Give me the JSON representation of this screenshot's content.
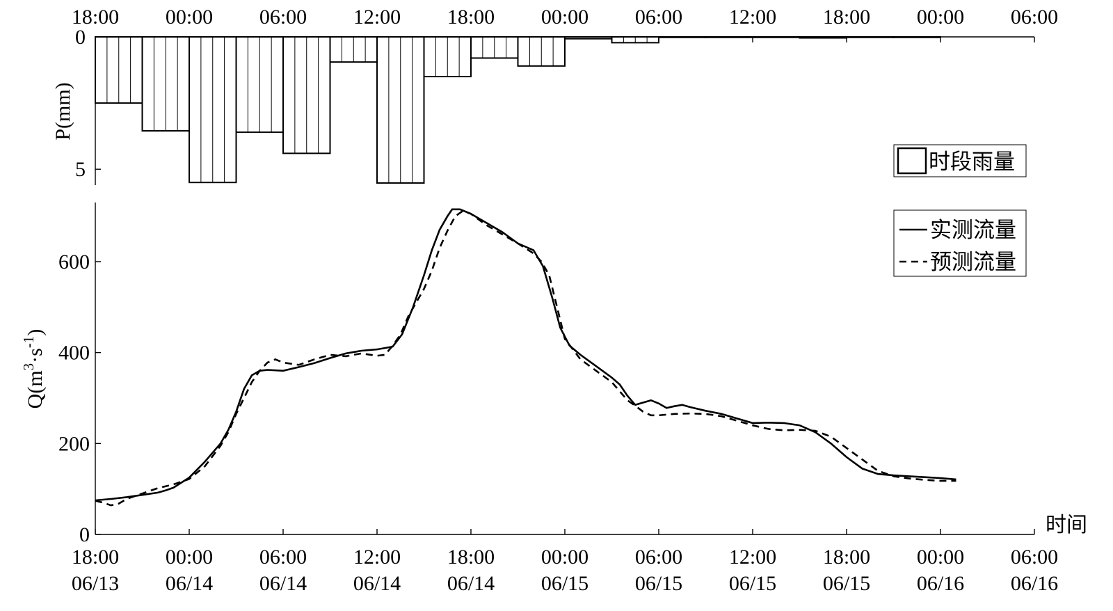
{
  "chart_data": [
    {
      "type": "bar",
      "ylabel": "P(mm)",
      "ylim": [
        0,
        5.6
      ],
      "y_inverted": true,
      "yticks": [
        {
          "value": 0,
          "label": "0"
        },
        {
          "value": 5,
          "label": "5"
        }
      ],
      "xaxis_position": "top",
      "xticks": [
        {
          "hours": 0,
          "label": "18:00"
        },
        {
          "hours": 6,
          "label": "00:00"
        },
        {
          "hours": 12,
          "label": "06:00"
        },
        {
          "hours": 18,
          "label": "12:00"
        },
        {
          "hours": 24,
          "label": "18:00"
        },
        {
          "hours": 30,
          "label": "00:00"
        },
        {
          "hours": 36,
          "label": "06:00"
        },
        {
          "hours": 42,
          "label": "12:00"
        },
        {
          "hours": 48,
          "label": "18:00"
        },
        {
          "hours": 54,
          "label": "00:00"
        },
        {
          "hours": 60,
          "label": "06:00"
        }
      ],
      "xlim_hours": [
        0,
        60
      ],
      "bar_width_hours": 3,
      "legend": {
        "label": "时段雨量",
        "position": "bottom-right"
      },
      "bars": [
        {
          "start_hours": 0,
          "value": 2.5
        },
        {
          "start_hours": 3,
          "value": 3.55
        },
        {
          "start_hours": 6,
          "value": 5.5
        },
        {
          "start_hours": 9,
          "value": 3.6
        },
        {
          "start_hours": 12,
          "value": 4.4
        },
        {
          "start_hours": 15,
          "value": 0.95
        },
        {
          "start_hours": 18,
          "value": 5.52
        },
        {
          "start_hours": 21,
          "value": 1.5
        },
        {
          "start_hours": 24,
          "value": 0.8
        },
        {
          "start_hours": 27,
          "value": 1.1
        },
        {
          "start_hours": 30,
          "value": 0.07
        },
        {
          "start_hours": 33,
          "value": 0.22
        },
        {
          "start_hours": 36,
          "value": 0.02
        },
        {
          "start_hours": 39,
          "value": 0.02
        },
        {
          "start_hours": 42,
          "value": 0.02
        },
        {
          "start_hours": 45,
          "value": 0.04
        },
        {
          "start_hours": 48,
          "value": 0.02
        },
        {
          "start_hours": 51,
          "value": 0.02
        }
      ]
    },
    {
      "type": "line",
      "ylabel": "Q(m³·s⁻¹)",
      "ylabel_base": "Q(m",
      "ylabel_sup1": "3",
      "ylabel_mid": "·s",
      "ylabel_sup2": "-1",
      "ylabel_end": ")",
      "xlabel": "时间",
      "ylim": [
        0,
        730
      ],
      "yticks": [
        0,
        200,
        400,
        600
      ],
      "xlim_hours": [
        0,
        60
      ],
      "xticks": [
        {
          "hours": 0,
          "time": "18:00",
          "date": "06/13"
        },
        {
          "hours": 6,
          "time": "00:00",
          "date": "06/14"
        },
        {
          "hours": 12,
          "time": "06:00",
          "date": "06/14"
        },
        {
          "hours": 18,
          "time": "12:00",
          "date": "06/14"
        },
        {
          "hours": 24,
          "time": "18:00",
          "date": "06/14"
        },
        {
          "hours": 30,
          "time": "00:00",
          "date": "06/15"
        },
        {
          "hours": 36,
          "time": "06:00",
          "date": "06/15"
        },
        {
          "hours": 42,
          "time": "12:00",
          "date": "06/15"
        },
        {
          "hours": 48,
          "time": "18:00",
          "date": "06/15"
        },
        {
          "hours": 54,
          "time": "00:00",
          "date": "06/16"
        },
        {
          "hours": 60,
          "time": "06:00",
          "date": "06/16"
        }
      ],
      "legend": {
        "position": "top-right"
      },
      "series": [
        {
          "name": "实测流量",
          "style": "solid",
          "points": [
            [
              0,
              75
            ],
            [
              1,
              78
            ],
            [
              2,
              82
            ],
            [
              3,
              87
            ],
            [
              4,
              92
            ],
            [
              4.5,
              97
            ],
            [
              5,
              103
            ],
            [
              6,
              125
            ],
            [
              7,
              160
            ],
            [
              8,
              200
            ],
            [
              8.5,
              230
            ],
            [
              9,
              270
            ],
            [
              9.5,
              320
            ],
            [
              10,
              350
            ],
            [
              10.5,
              360
            ],
            [
              11,
              362
            ],
            [
              12,
              360
            ],
            [
              13,
              368
            ],
            [
              14,
              377
            ],
            [
              15,
              388
            ],
            [
              16,
              398
            ],
            [
              17,
              404
            ],
            [
              18,
              407
            ],
            [
              19,
              413
            ],
            [
              19.6,
              440
            ],
            [
              20.3,
              500
            ],
            [
              21,
              570
            ],
            [
              21.5,
              625
            ],
            [
              22,
              670
            ],
            [
              22.5,
              700
            ],
            [
              22.8,
              715
            ],
            [
              23.3,
              715
            ],
            [
              24,
              705
            ],
            [
              25,
              685
            ],
            [
              26,
              665
            ],
            [
              27,
              640
            ],
            [
              28,
              625
            ],
            [
              28.6,
              590
            ],
            [
              29.2,
              520
            ],
            [
              29.7,
              455
            ],
            [
              30.3,
              415
            ],
            [
              31,
              395
            ],
            [
              32,
              370
            ],
            [
              33,
              345
            ],
            [
              33.5,
              330
            ],
            [
              34,
              305
            ],
            [
              34.5,
              285
            ],
            [
              35,
              290
            ],
            [
              35.5,
              295
            ],
            [
              36,
              288
            ],
            [
              36.5,
              278
            ],
            [
              37,
              282
            ],
            [
              37.5,
              285
            ],
            [
              38,
              280
            ],
            [
              39,
              272
            ],
            [
              40,
              265
            ],
            [
              41,
              255
            ],
            [
              42,
              245
            ],
            [
              43,
              246
            ],
            [
              44,
              245
            ],
            [
              45,
              240
            ],
            [
              46,
              225
            ],
            [
              47,
              200
            ],
            [
              48,
              170
            ],
            [
              49,
              145
            ],
            [
              50,
              133
            ],
            [
              51,
              130
            ],
            [
              52,
              128
            ],
            [
              53,
              126
            ],
            [
              54,
              124
            ],
            [
              55,
              121
            ]
          ]
        },
        {
          "name": "预测流量",
          "style": "dashed",
          "points": [
            [
              0,
              74
            ],
            [
              0.5,
              70
            ],
            [
              1,
              64
            ],
            [
              1.5,
              68
            ],
            [
              2,
              78
            ],
            [
              3,
              90
            ],
            [
              4,
              102
            ],
            [
              5,
              110
            ],
            [
              6,
              122
            ],
            [
              7,
              150
            ],
            [
              8,
              195
            ],
            [
              8.5,
              225
            ],
            [
              9,
              265
            ],
            [
              9.5,
              300
            ],
            [
              10,
              335
            ],
            [
              10.5,
              360
            ],
            [
              11,
              378
            ],
            [
              11.5,
              385
            ],
            [
              12,
              378
            ],
            [
              13,
              373
            ],
            [
              14,
              385
            ],
            [
              15,
              395
            ],
            [
              16,
              392
            ],
            [
              17,
              398
            ],
            [
              18,
              393
            ],
            [
              18.5,
              395
            ],
            [
              19,
              415
            ],
            [
              19.5,
              440
            ],
            [
              20,
              480
            ],
            [
              21,
              540
            ],
            [
              21.5,
              580
            ],
            [
              22,
              630
            ],
            [
              22.5,
              668
            ],
            [
              23,
              700
            ],
            [
              23.5,
              712
            ],
            [
              24,
              705
            ],
            [
              25,
              680
            ],
            [
              26,
              660
            ],
            [
              27,
              640
            ],
            [
              28,
              618
            ],
            [
              28.5,
              600
            ],
            [
              29,
              570
            ],
            [
              29.5,
              500
            ],
            [
              30,
              430
            ],
            [
              31,
              385
            ],
            [
              32,
              360
            ],
            [
              33,
              335
            ],
            [
              33.5,
              315
            ],
            [
              34,
              295
            ],
            [
              34.5,
              283
            ],
            [
              35,
              270
            ],
            [
              35.5,
              262
            ],
            [
              36,
              262
            ],
            [
              37,
              265
            ],
            [
              38,
              266
            ],
            [
              39,
              265
            ],
            [
              40,
              260
            ],
            [
              41,
              250
            ],
            [
              42,
              240
            ],
            [
              43,
              232
            ],
            [
              44,
              229
            ],
            [
              45,
              230
            ],
            [
              46,
              228
            ],
            [
              47,
              215
            ],
            [
              48,
              190
            ],
            [
              49,
              165
            ],
            [
              50,
              140
            ],
            [
              51,
              128
            ],
            [
              52,
              123
            ],
            [
              53,
              120
            ],
            [
              54,
              118
            ],
            [
              55,
              118
            ]
          ]
        }
      ]
    }
  ]
}
